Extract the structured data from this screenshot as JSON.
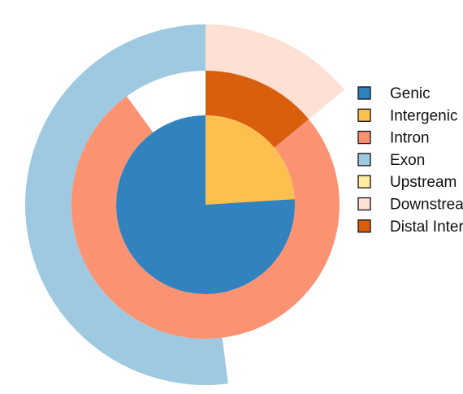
{
  "chart_data": {
    "type": "sunburst",
    "title": "",
    "rings": [
      {
        "level": "inner",
        "segments": [
          {
            "name": "Intergenic",
            "value": 0.24,
            "color": "#FDC04F"
          },
          {
            "name": "Genic",
            "value": 0.76,
            "color": "#3282BE"
          }
        ]
      },
      {
        "level": "middle",
        "segments": [
          {
            "name": "Distal Intergenic",
            "value": 0.14,
            "color": "#D95F0E"
          },
          {
            "name": "Intron",
            "value": 0.76,
            "color": "#FB9373"
          },
          {
            "name": "",
            "value": 0.1,
            "color": "none"
          }
        ]
      },
      {
        "level": "outer",
        "segments": [
          {
            "name": "Downstream",
            "value": 0.14,
            "color": "#FEE0D4"
          },
          {
            "name": "",
            "value": 0.34,
            "color": "none"
          },
          {
            "name": "Exon",
            "value": 0.52,
            "color": "#9FC9E0"
          }
        ]
      }
    ],
    "legend": {
      "placement": "right",
      "entries": [
        {
          "label": "Genic",
          "color": "#3282BE"
        },
        {
          "label": "Intergenic",
          "color": "#FDC04F"
        },
        {
          "label": "Intron",
          "color": "#FB9373"
        },
        {
          "label": "Exon",
          "color": "#9FC9E0"
        },
        {
          "label": "Upstream",
          "color": "#FEEDA0"
        },
        {
          "label": "Downstream",
          "color": "#FEE0D4"
        },
        {
          "label": "Distal Intergenic",
          "color": "#D95F0E"
        }
      ]
    }
  }
}
